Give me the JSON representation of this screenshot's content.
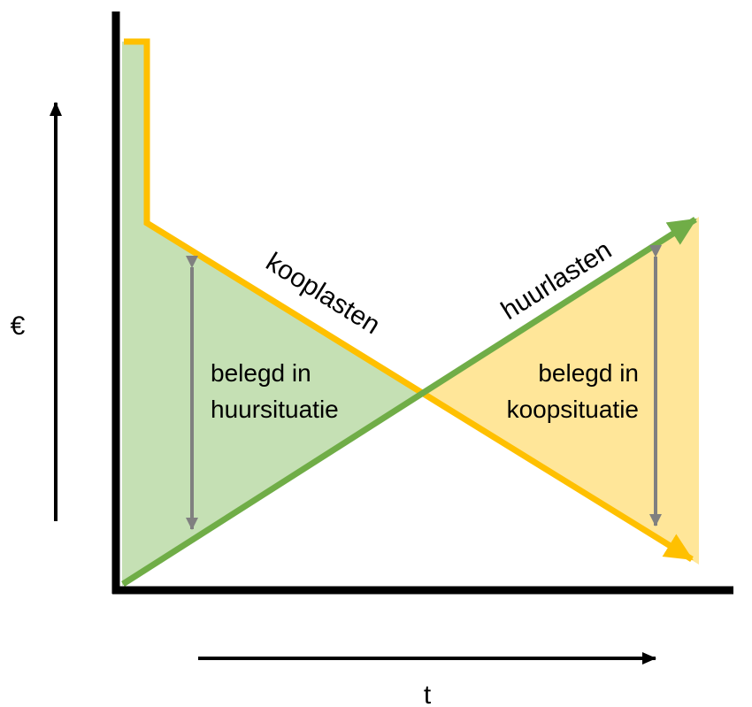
{
  "labels": {
    "y_axis": "€",
    "x_axis": "t",
    "kooplasten": "kooplasten",
    "huurlasten": "huurlasten",
    "belegd_huur_line1": "belegd in",
    "belegd_huur_line2": "huursituatie",
    "belegd_koop_line1": "belegd in",
    "belegd_koop_line2": "koopsituatie"
  },
  "colors": {
    "kooplasten_line": "#FFC000",
    "huurlasten_line": "#70AD47",
    "huur_area_fill": "#C5E0B4",
    "koop_area_fill": "#FFE699",
    "range_arrow": "#808080",
    "axis": "#000000"
  }
}
